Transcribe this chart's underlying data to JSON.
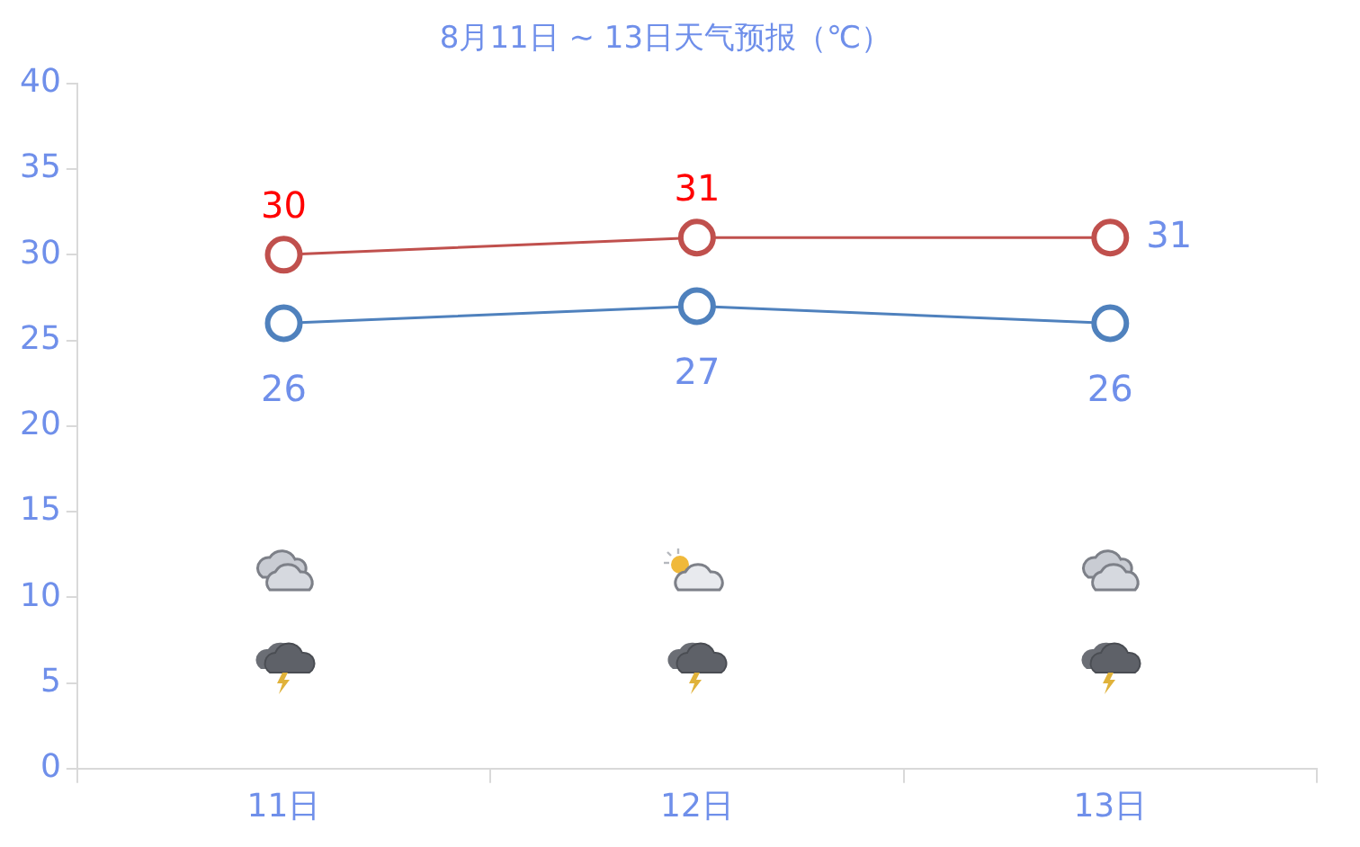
{
  "chart_data": {
    "type": "line",
    "title": "8月11日 ~ 13日天气预报（℃）",
    "categories": [
      "11日",
      "12日",
      "13日"
    ],
    "series": [
      {
        "color": "#c0504d",
        "values": [
          30,
          31,
          31
        ]
      },
      {
        "color": "#4f81bd",
        "values": [
          26,
          27,
          26
        ]
      }
    ],
    "ylim": [
      0,
      40
    ],
    "yticks": [
      0,
      5,
      10,
      15,
      20,
      25,
      30,
      35,
      40
    ],
    "grid": false,
    "legend": false,
    "marker": "circle",
    "line_style": "solid",
    "data_labels": true
  }
}
